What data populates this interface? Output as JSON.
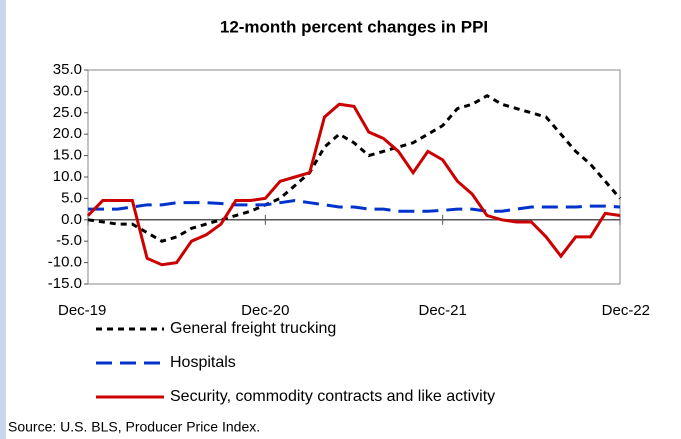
{
  "chart_data": {
    "type": "line",
    "title": "12-month percent changes in PPI",
    "categories": [
      "Dec-19",
      null,
      null,
      null,
      null,
      null,
      null,
      null,
      null,
      null,
      null,
      null,
      "Dec-20",
      null,
      null,
      null,
      null,
      null,
      null,
      null,
      null,
      null,
      null,
      null,
      "Dec-21",
      null,
      null,
      null,
      null,
      null,
      null,
      null,
      null,
      null,
      null,
      null,
      "Dec-22"
    ],
    "series": [
      {
        "name": "General freight trucking",
        "color": "#000000",
        "dash": "dotted",
        "values": [
          0,
          -0.5,
          -1,
          -1,
          -3,
          -5,
          -4,
          -2,
          -1,
          0,
          1,
          2,
          3.5,
          5,
          8,
          11,
          17,
          20,
          18,
          15,
          16,
          17,
          18,
          20,
          22,
          26,
          27,
          29,
          27,
          26,
          25,
          24,
          20,
          16,
          13,
          9,
          5
        ]
      },
      {
        "name": "Hospitals",
        "color": "#0033cc",
        "dash": "dashed",
        "values": [
          2.5,
          2.5,
          2.5,
          3,
          3.5,
          3.5,
          4,
          4,
          4,
          3.8,
          3.5,
          3.5,
          3.5,
          4,
          4.5,
          4,
          3.5,
          3,
          3,
          2.5,
          2.5,
          2,
          2,
          2,
          2.2,
          2.5,
          2.5,
          2,
          2,
          2.5,
          3,
          3,
          3,
          3,
          3.2,
          3.2,
          3
        ]
      },
      {
        "name": "Security, commodity contracts and like activity",
        "color": "#cc0000",
        "dash": "solid",
        "values": [
          1,
          4.5,
          4.5,
          4.5,
          -9,
          -10.5,
          -10,
          -5,
          -3.5,
          -1,
          4.5,
          4.5,
          5,
          9,
          10,
          11,
          24,
          27,
          26.5,
          20.5,
          19,
          16,
          11,
          16,
          14,
          9,
          6,
          1,
          0,
          -0.5,
          -0.5,
          -4,
          -8.5,
          -4,
          -4,
          1.5,
          1
        ]
      }
    ],
    "ylim": [
      -15,
      35
    ],
    "yticks": [
      {
        "value": -15,
        "label": "-15.0"
      },
      {
        "value": -10,
        "label": "-10.0"
      },
      {
        "value": -5,
        "label": "-5.0"
      },
      {
        "value": 0,
        "label": "0.0"
      },
      {
        "value": 5,
        "label": "5.0"
      },
      {
        "value": 10,
        "label": "10.0"
      },
      {
        "value": 15,
        "label": "15.0"
      },
      {
        "value": 20,
        "label": "20.0"
      },
      {
        "value": 25,
        "label": "25.0"
      },
      {
        "value": 30,
        "label": "30.0"
      },
      {
        "value": 35,
        "label": "35.0"
      }
    ],
    "grid": false,
    "source": "Source: U.S. BLS, Producer Price Index."
  }
}
